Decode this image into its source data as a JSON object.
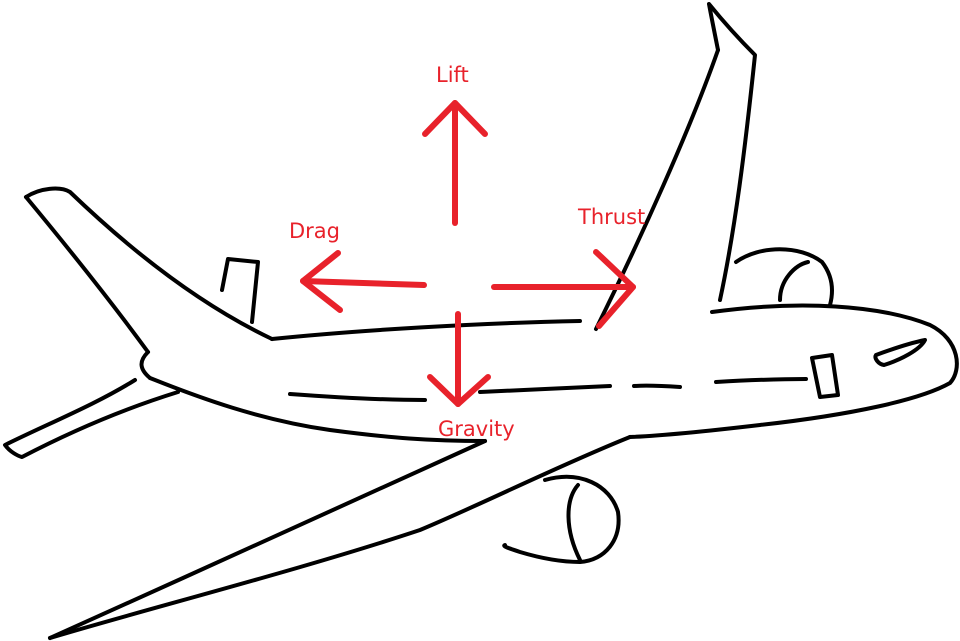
{
  "forces": {
    "lift": "Lift",
    "drag": "Drag",
    "thrust": "Thrust",
    "gravity": "Gravity"
  },
  "colors": {
    "arrow": "#e8222b",
    "outline": "#000000",
    "background": "#ffffff"
  }
}
